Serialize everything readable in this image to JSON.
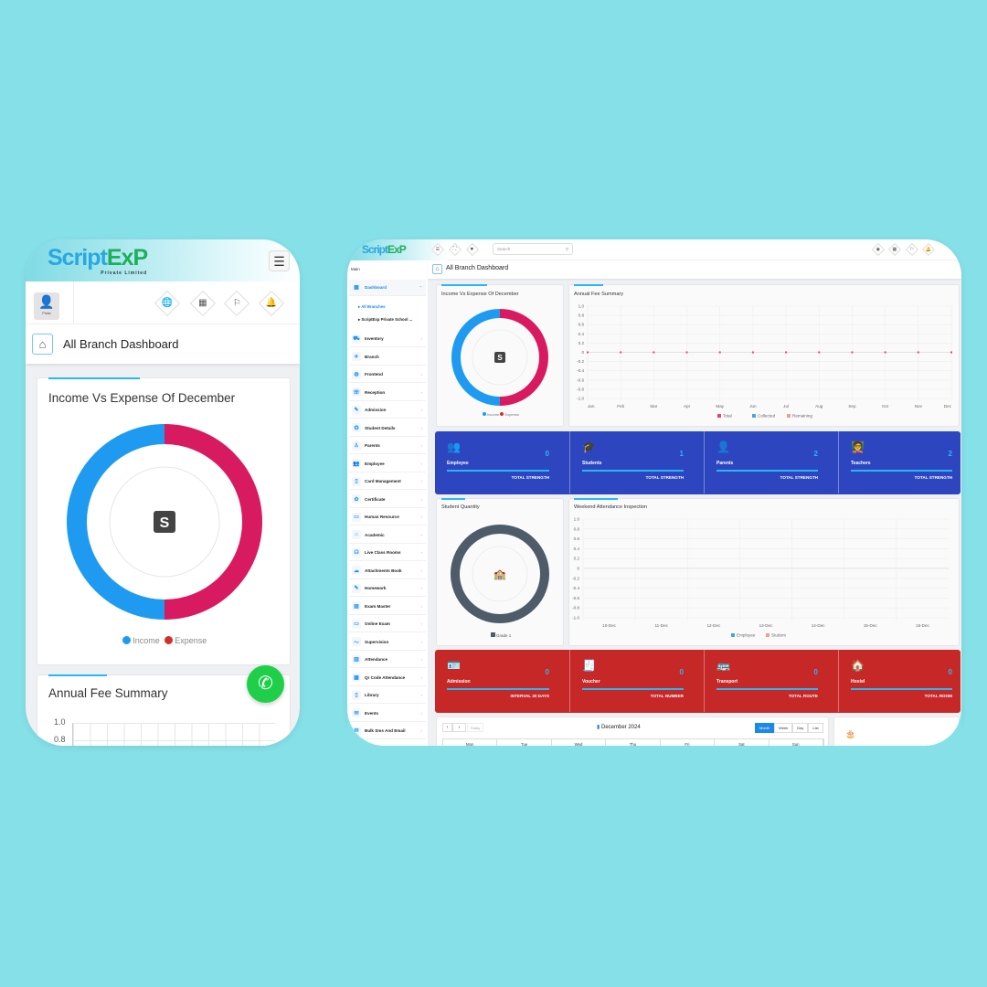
{
  "brand": {
    "name_a": "Script",
    "name_b": "ExP",
    "tagline": "Private Limited"
  },
  "colors": {
    "background": "#86e0e8",
    "income": "#1e9bf0",
    "expense": "#d81b60",
    "blue_card": "#2d46bf",
    "red_card": "#c62828",
    "student_ring": "#4d5c68",
    "accent": "#29b6f6"
  },
  "mobile": {
    "avatar_label": "Photo",
    "header_icons": [
      "globe-icon",
      "calendar-icon",
      "flag-icon",
      "bell-icon"
    ],
    "breadcrumb": "All Branch Dashboard",
    "income_card": {
      "title": "Income Vs Expense Of December",
      "legend": [
        "Income",
        "Expense"
      ]
    },
    "fee_card": {
      "title": "Annual Fee Summary",
      "y_ticks": [
        "1.0",
        "0.8"
      ]
    }
  },
  "desktop": {
    "search_placeholder": "Search",
    "sidebar_heading": "Main",
    "breadcrumb": "All Branch Dashboard",
    "sidebar": {
      "dashboard": "Dashboard",
      "sub": [
        "All Branches",
        "ScriptExp Private School ..."
      ],
      "items": [
        "Inventory",
        "Branch",
        "Frontend",
        "Reception",
        "Admission",
        "Student Details",
        "Parents",
        "Employee",
        "Card Management",
        "Certificate",
        "Human Resource",
        "Academic",
        "Live Class Rooms",
        "Attachments Book",
        "Homework",
        "Exam Master",
        "Online Exam",
        "Supervision",
        "Attendance",
        "Qr Code Attendance",
        "Library",
        "Events",
        "Bulk Sms And Email"
      ]
    },
    "income_card": {
      "title": "Income Vs Expense Of December",
      "legend": [
        "Income",
        "Expense"
      ]
    },
    "student_card": {
      "title": "Student Quantity",
      "legend": [
        "Grade 1"
      ]
    },
    "blue_stats": [
      {
        "label": "Employee",
        "value": "0",
        "sub": "TOTAL STRENGTH",
        "icon": "👥"
      },
      {
        "label": "Students",
        "value": "1",
        "sub": "TOTAL STRENGTH",
        "icon": "🎓"
      },
      {
        "label": "Parents",
        "value": "2",
        "sub": "TOTAL STRENGTH",
        "icon": "👤"
      },
      {
        "label": "Teachers",
        "value": "2",
        "sub": "TOTAL STRENGTH",
        "icon": "🧑‍🏫"
      }
    ],
    "red_stats": [
      {
        "label": "Admission",
        "value": "0",
        "sub": "INTERVAL 30 DAYS",
        "icon": "🪪"
      },
      {
        "label": "Voucher",
        "value": "0",
        "sub": "TOTAL NUMBER",
        "icon": "🧾"
      },
      {
        "label": "Transport",
        "value": "0",
        "sub": "TOTAL ROUTE",
        "icon": "🚌"
      },
      {
        "label": "Hostel",
        "value": "0",
        "sub": "TOTAL ROOM",
        "icon": "🏠"
      }
    ],
    "calendar": {
      "title": "December 2024",
      "today": "Today",
      "views": [
        "Month",
        "Week",
        "Day",
        "List"
      ],
      "active_view": "Month",
      "weekdays": [
        "Mon",
        "Tue",
        "Wed",
        "Thu",
        "Fri",
        "Sat",
        "Sun"
      ]
    }
  },
  "chart_data": [
    {
      "type": "pie",
      "title": "Income Vs Expense Of December",
      "categories": [
        "Income",
        "Expense"
      ],
      "values": [
        50,
        50
      ]
    },
    {
      "type": "line",
      "title": "Annual Fee Summary",
      "categories": [
        "Jan",
        "Feb",
        "Mar",
        "Apr",
        "May",
        "Jun",
        "Jul",
        "Aug",
        "Sep",
        "Oct",
        "Nov",
        "Dec"
      ],
      "ylim": [
        -1,
        1
      ],
      "y_ticks": [
        "1.0",
        "0.8",
        "0.6",
        "0.4",
        "0.2",
        "0",
        "-0.2",
        "-0.4",
        "-0.6",
        "-0.8",
        "-1.0"
      ],
      "grid": true,
      "legend": "bottom",
      "series": [
        {
          "name": "Total",
          "color": "#e0457b",
          "values": [
            0,
            0,
            0,
            0,
            0,
            0,
            0,
            0,
            0,
            0,
            0,
            0
          ]
        },
        {
          "name": "Collected",
          "color": "#4aa3df",
          "values": [
            0,
            0,
            0,
            0,
            0,
            0,
            0,
            0,
            0,
            0,
            0,
            0
          ]
        },
        {
          "name": "Remaining",
          "color": "#e8a09a",
          "values": [
            0,
            0,
            0,
            0,
            0,
            0,
            0,
            0,
            0,
            0,
            0,
            0
          ]
        }
      ]
    },
    {
      "type": "pie",
      "title": "Student Quantity",
      "categories": [
        "Grade 1"
      ],
      "values": [
        1
      ]
    },
    {
      "type": "bar",
      "title": "Weekend Attendance Inspection",
      "categories": [
        "10-Dec",
        "11-Dec",
        "12-Dec",
        "13-Dec",
        "14-Dec",
        "15-Dec",
        "16-Dec"
      ],
      "ylim": [
        -1,
        1
      ],
      "y_ticks": [
        "1.0",
        "0.8",
        "0.6",
        "0.4",
        "0.2",
        "0",
        "-0.2",
        "-0.4",
        "-0.6",
        "-0.8",
        "-1.0"
      ],
      "grid": true,
      "legend": "bottom",
      "series": [
        {
          "name": "Employee",
          "color": "#4aa3df",
          "values": [
            0,
            0,
            0,
            0,
            0,
            0,
            0
          ]
        },
        {
          "name": "Student",
          "color": "#e8a09a",
          "values": [
            0,
            0,
            0,
            0,
            0,
            0,
            0
          ]
        }
      ]
    }
  ]
}
